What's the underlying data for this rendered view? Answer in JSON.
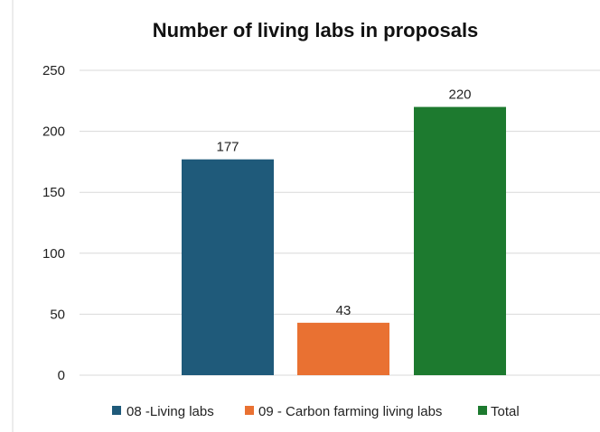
{
  "chart_data": {
    "type": "bar",
    "title": "Number of living labs in proposals",
    "series": [
      {
        "name": "08 -Living labs",
        "value": 177,
        "color": "#1f5a7a"
      },
      {
        "name": "09 - Carbon farming living labs",
        "value": 43,
        "color": "#e97132"
      },
      {
        "name": "Total",
        "value": 220,
        "color": "#1d7a2f"
      }
    ],
    "ylim": [
      0,
      250
    ],
    "yticks": [
      0,
      50,
      100,
      150,
      200,
      250
    ],
    "grid": true,
    "legend": "bottom"
  }
}
